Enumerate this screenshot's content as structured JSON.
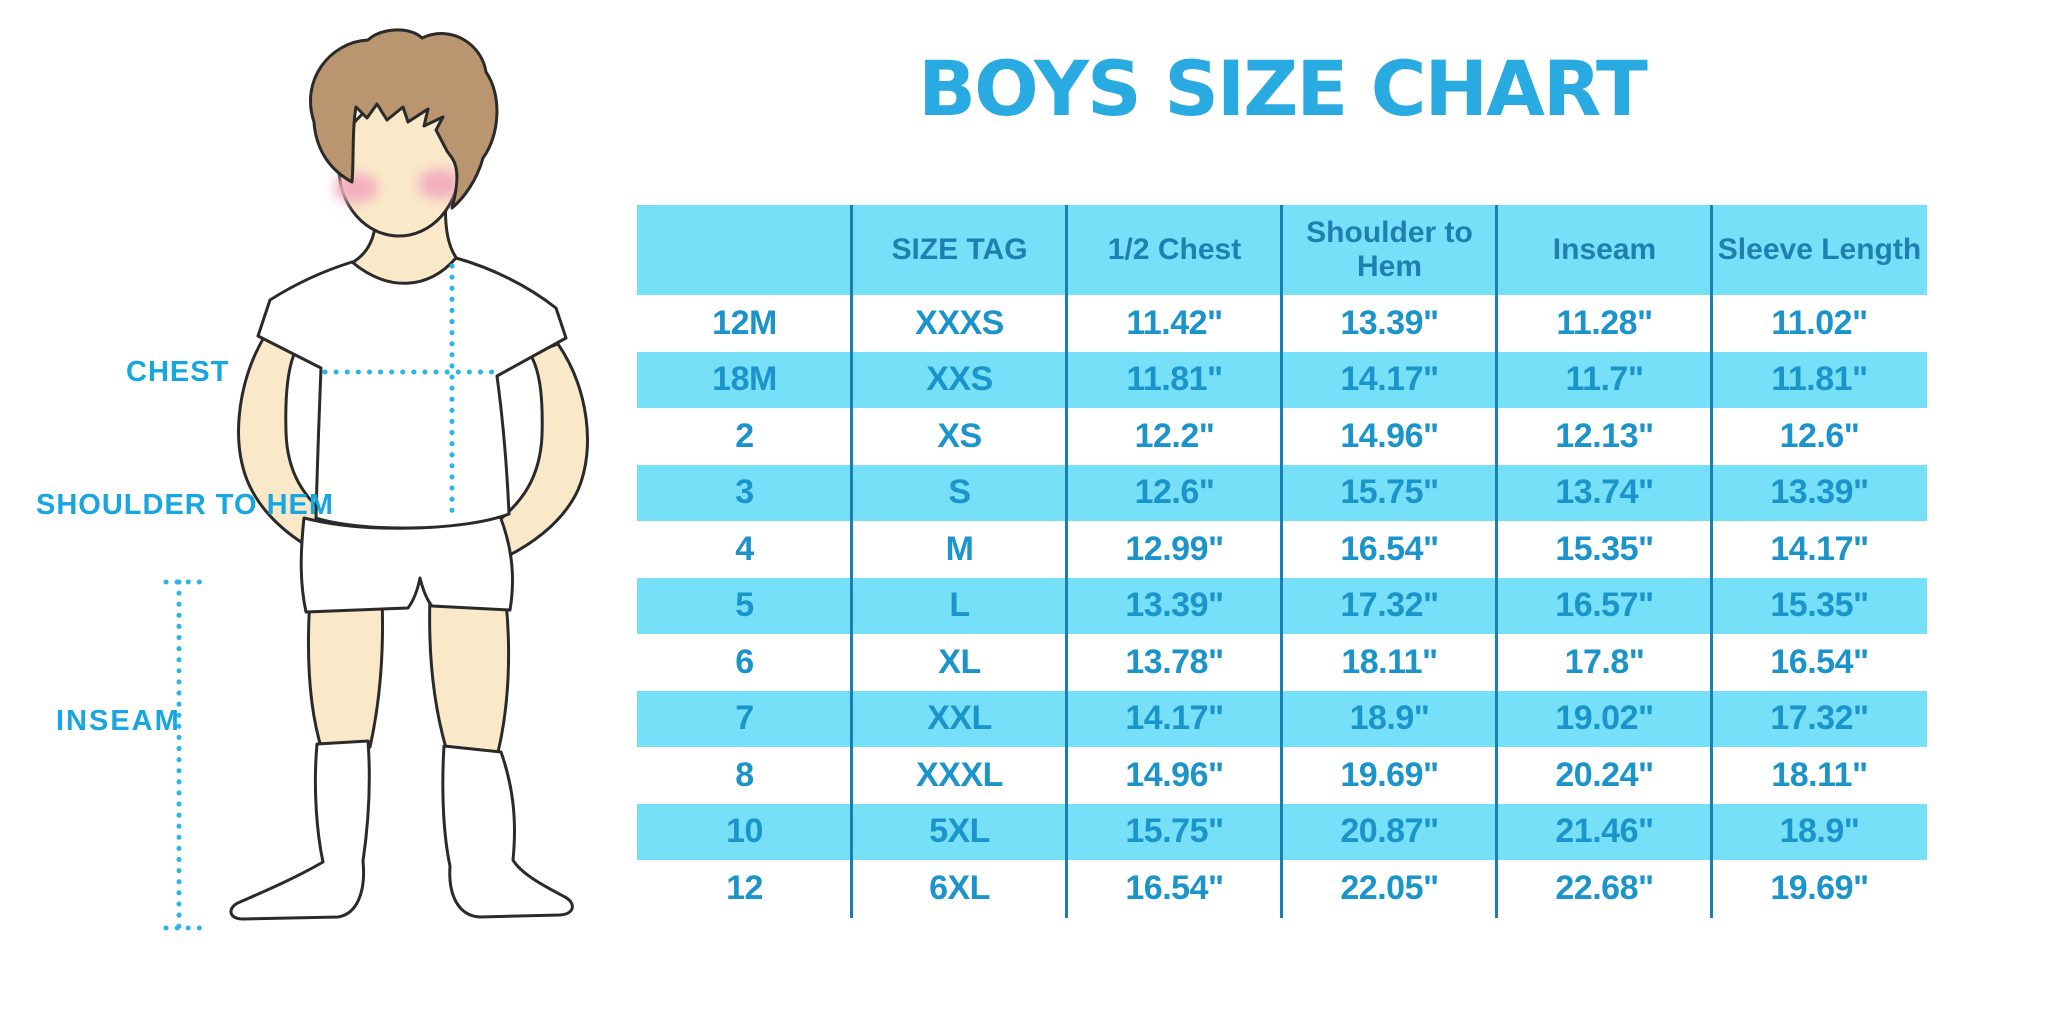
{
  "page_title": "BOYS SIZE CHART",
  "figure": {
    "chest_label": "CHEST",
    "shoulder_to_hem_label": "SHOULDER TO HEM",
    "inseam_label": "INSEAM"
  },
  "chart_data": {
    "type": "table",
    "title": "BOYS SIZE CHART",
    "columns": [
      "",
      "SIZE TAG",
      "1/2 Chest",
      "Shoulder to Hem",
      "Inseam",
      "Sleeve Length"
    ],
    "rows": [
      [
        "12M",
        "XXXS",
        "11.42\"",
        "13.39\"",
        "11.28\"",
        "11.02\""
      ],
      [
        "18M",
        "XXS",
        "11.81\"",
        "14.17\"",
        "11.7\"",
        "11.81\""
      ],
      [
        "2",
        "XS",
        "12.2\"",
        "14.96\"",
        "12.13\"",
        "12.6\""
      ],
      [
        "3",
        "S",
        "12.6\"",
        "15.75\"",
        "13.74\"",
        "13.39\""
      ],
      [
        "4",
        "M",
        "12.99\"",
        "16.54\"",
        "15.35\"",
        "14.17\""
      ],
      [
        "5",
        "L",
        "13.39\"",
        "17.32\"",
        "16.57\"",
        "15.35\""
      ],
      [
        "6",
        "XL",
        "13.78\"",
        "18.11\"",
        "17.8\"",
        "16.54\""
      ],
      [
        "7",
        "XXL",
        "14.17\"",
        "18.9\"",
        "19.02\"",
        "17.32\""
      ],
      [
        "8",
        "XXXL",
        "14.96\"",
        "19.69\"",
        "20.24\"",
        "18.11\""
      ],
      [
        "10",
        "5XL",
        "15.75\"",
        "20.87\"",
        "21.46\"",
        "18.9\""
      ],
      [
        "12",
        "6XL",
        "16.54\"",
        "22.05\"",
        "22.68\"",
        "19.69\""
      ]
    ],
    "row_stripe_pattern": "alternating white / cyan starting white",
    "legend_position": "none",
    "grid": "vertical column dividers only"
  },
  "colors": {
    "title_blue": "#29ABE2",
    "label_blue": "#18A6E3",
    "stripe": "#76E0F8",
    "header_text": "#1E7FB0",
    "cell_text": "#1B93CB",
    "divider": "#1A7FB2",
    "dotted": "#2BB4EA",
    "skin": "#FAE9C9",
    "hair": "#B9966F",
    "blush": "#F2AFBE",
    "outline": "#2A2A2A",
    "garment": "#FFFFFF"
  }
}
